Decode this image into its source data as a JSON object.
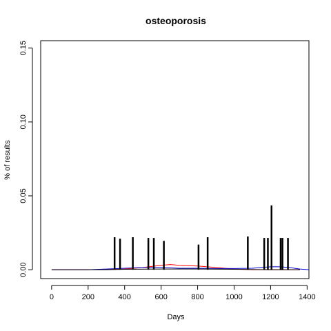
{
  "chart_data": {
    "type": "line",
    "title": "osteoporosis",
    "xlabel": "Days",
    "ylabel": "% of results",
    "xlim": [
      -60,
      1410
    ],
    "ylim": [
      -0.006,
      0.155
    ],
    "xticks": [
      0,
      200,
      400,
      600,
      800,
      1000,
      1200,
      1400
    ],
    "xtick_labels": [
      "0",
      "200",
      "400",
      "600",
      "800",
      "1000",
      "1200",
      "1400"
    ],
    "yticks": [
      0.0,
      0.05,
      0.1,
      0.15
    ],
    "ytick_labels": [
      "0.00",
      "0.05",
      "0.10",
      "0.15"
    ],
    "grid": false,
    "spikes": {
      "color": "#000000",
      "x": [
        345,
        375,
        445,
        530,
        560,
        615,
        805,
        855,
        1075,
        1165,
        1185,
        1205,
        1255,
        1265,
        1295
      ],
      "values": [
        0.022,
        0.021,
        0.022,
        0.0215,
        0.0215,
        0.0195,
        0.017,
        0.022,
        0.0225,
        0.0215,
        0.0215,
        0.0435,
        0.0215,
        0.0215,
        0.0215
      ]
    },
    "series": [
      {
        "color": "#ff0000",
        "x": [
          0,
          200,
          400,
          500,
          600,
          650,
          700,
          800,
          900,
          1000,
          1100,
          1200,
          1300,
          1360
        ],
        "values": [
          0.0,
          0.0,
          0.0005,
          0.0015,
          0.003,
          0.0035,
          0.003,
          0.0025,
          0.0015,
          0.0005,
          0.0,
          0.0,
          0.0,
          0.0
        ]
      },
      {
        "color": "#0000cc",
        "x": [
          0,
          200,
          300,
          400,
          500,
          600,
          700,
          800,
          900,
          1000,
          1100,
          1150,
          1200,
          1250,
          1300,
          1360,
          1410
        ],
        "values": [
          0.0,
          0.0,
          0.0005,
          0.001,
          0.0015,
          0.0015,
          0.001,
          0.001,
          0.0008,
          0.0008,
          0.001,
          0.0015,
          0.002,
          0.002,
          0.0015,
          0.0005,
          0.0
        ]
      },
      {
        "color": "#000000",
        "x": [
          0,
          300,
          400,
          600,
          800,
          1000,
          1200,
          1360
        ],
        "values": [
          0.0,
          0.0,
          0.0003,
          0.0005,
          0.0005,
          0.0003,
          0.0,
          0.0
        ]
      }
    ]
  }
}
